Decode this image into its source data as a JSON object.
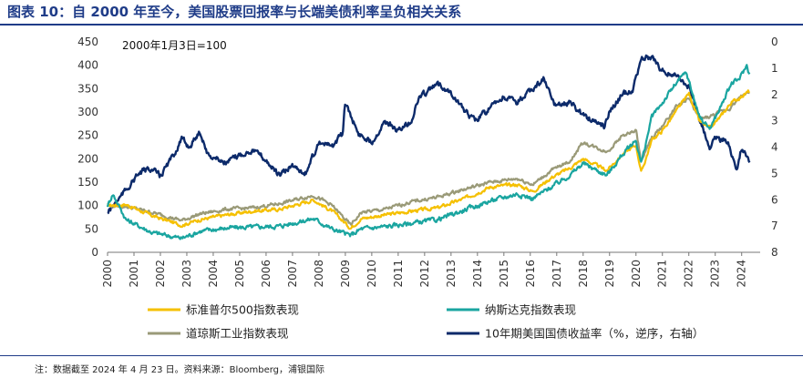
{
  "figure": {
    "title": "图表 10：自 2000 年至今，美国股票回报率与长端美债利率呈负相关关系",
    "source": "注：数据截至 2024 年 4 月 23 日。资料来源：Bloomberg，浦银国际"
  },
  "chart_data": {
    "type": "line",
    "annotation": "2000年1月3日=100",
    "x_ticks": [
      "2000",
      "2001",
      "2002",
      "2003",
      "2004",
      "2005",
      "2006",
      "2007",
      "2008",
      "2009",
      "2010",
      "2011",
      "2012",
      "2013",
      "2014",
      "2015",
      "2016",
      "2017",
      "2018",
      "2019",
      "2020",
      "2021",
      "2022",
      "2023",
      "2024"
    ],
    "y_left": {
      "range": [
        0,
        450
      ],
      "ticks": [
        "0",
        "50",
        "100",
        "150",
        "200",
        "250",
        "300",
        "350",
        "400",
        "450"
      ]
    },
    "y_right": {
      "range": [
        0,
        8
      ],
      "inverted": true,
      "ticks": [
        "0",
        "1",
        "2",
        "3",
        "4",
        "5",
        "6",
        "7",
        "8"
      ]
    },
    "legend_position": "bottom",
    "series": [
      {
        "name": "标准普尔500指数表现",
        "color": "#f5c000",
        "axis": "left",
        "x": [
          2000.0,
          2000.7,
          2001.7,
          2002.8,
          2003.5,
          2004.5,
          2005.5,
          2006.5,
          2007.8,
          2008.5,
          2009.2,
          2009.6,
          2010.5,
          2011.5,
          2012.5,
          2013.5,
          2014.5,
          2015.5,
          2016.1,
          2016.8,
          2017.5,
          2018.0,
          2018.9,
          2019.5,
          2020.0,
          2020.2,
          2020.6,
          2021.0,
          2021.5,
          2022.0,
          2022.4,
          2022.8,
          2023.2,
          2023.6,
          2023.9,
          2024.3
        ],
        "y": [
          100,
          102,
          78,
          58,
          70,
          80,
          88,
          92,
          112,
          88,
          52,
          72,
          80,
          88,
          95,
          115,
          140,
          145,
          130,
          160,
          180,
          200,
          175,
          210,
          230,
          170,
          240,
          260,
          300,
          340,
          280,
          265,
          290,
          320,
          330,
          345
        ]
      },
      {
        "name": "纳斯达克指数表现",
        "color": "#1aa5a0",
        "axis": "left",
        "x": [
          2000.0,
          2000.2,
          2000.7,
          2001.7,
          2002.8,
          2003.5,
          2004.5,
          2005.5,
          2006.5,
          2007.8,
          2008.5,
          2009.2,
          2009.6,
          2010.5,
          2011.5,
          2012.5,
          2013.5,
          2014.5,
          2015.5,
          2016.1,
          2016.8,
          2017.5,
          2018.0,
          2018.9,
          2019.5,
          2020.0,
          2020.2,
          2020.6,
          2021.0,
          2021.5,
          2021.9,
          2022.4,
          2022.8,
          2023.2,
          2023.6,
          2023.9,
          2024.2,
          2024.3
        ],
        "y": [
          100,
          125,
          70,
          42,
          30,
          45,
          52,
          54,
          56,
          72,
          50,
          36,
          50,
          55,
          62,
          70,
          90,
          110,
          125,
          115,
          140,
          165,
          190,
          165,
          210,
          240,
          190,
          290,
          320,
          360,
          385,
          290,
          265,
          310,
          360,
          370,
          400,
          380
        ]
      },
      {
        "name": "道琼斯工业指数表现",
        "color": "#9a9a78",
        "axis": "left",
        "x": [
          2000.0,
          2000.7,
          2001.7,
          2002.8,
          2003.5,
          2004.5,
          2005.5,
          2006.5,
          2007.8,
          2008.5,
          2009.2,
          2009.6,
          2010.5,
          2011.5,
          2012.5,
          2013.5,
          2014.5,
          2015.5,
          2016.1,
          2016.8,
          2017.5,
          2018.0,
          2018.9,
          2019.5,
          2020.0,
          2020.2,
          2020.6,
          2021.0,
          2021.5,
          2022.0,
          2022.4,
          2022.8,
          2023.2,
          2023.6,
          2023.9,
          2024.3
        ],
        "y": [
          100,
          98,
          85,
          68,
          82,
          92,
          95,
          104,
          122,
          100,
          58,
          85,
          92,
          108,
          118,
          135,
          150,
          158,
          145,
          175,
          195,
          235,
          215,
          250,
          260,
          195,
          245,
          270,
          310,
          330,
          285,
          290,
          300,
          310,
          330,
          345
        ]
      },
      {
        "name": "10年期美国国债收益率（%，逆序，右轴）",
        "color": "#0c2a6a",
        "axis": "right",
        "x": [
          2000.0,
          2000.4,
          2000.8,
          2001.2,
          2001.6,
          2002.0,
          2002.5,
          2002.8,
          2003.1,
          2003.5,
          2003.8,
          2004.5,
          2005.0,
          2005.5,
          2006.0,
          2006.5,
          2007.0,
          2007.5,
          2008.0,
          2008.5,
          2008.9,
          2009.0,
          2009.5,
          2010.0,
          2010.5,
          2011.0,
          2011.5,
          2011.8,
          2012.5,
          2013.0,
          2013.5,
          2013.9,
          2014.5,
          2015.0,
          2015.5,
          2016.0,
          2016.5,
          2016.9,
          2017.5,
          2018.0,
          2018.8,
          2019.0,
          2019.5,
          2019.9,
          2020.2,
          2020.6,
          2021.0,
          2021.5,
          2022.0,
          2022.4,
          2022.8,
          2023.0,
          2023.5,
          2023.8,
          2024.0,
          2024.3
        ],
        "y": [
          6.5,
          6.0,
          5.5,
          5.0,
          4.8,
          5.1,
          4.3,
          3.7,
          4.0,
          3.4,
          4.3,
          4.6,
          4.3,
          4.1,
          4.5,
          5.1,
          4.7,
          5.0,
          3.8,
          4.0,
          3.5,
          2.3,
          3.5,
          3.8,
          3.0,
          3.4,
          3.0,
          2.1,
          1.6,
          1.9,
          2.6,
          3.0,
          2.5,
          2.1,
          2.3,
          1.9,
          1.4,
          2.4,
          2.3,
          2.8,
          3.2,
          2.6,
          2.0,
          1.8,
          0.6,
          0.6,
          1.1,
          1.3,
          1.7,
          2.9,
          4.0,
          3.6,
          3.8,
          4.9,
          4.0,
          4.6
        ]
      }
    ]
  }
}
